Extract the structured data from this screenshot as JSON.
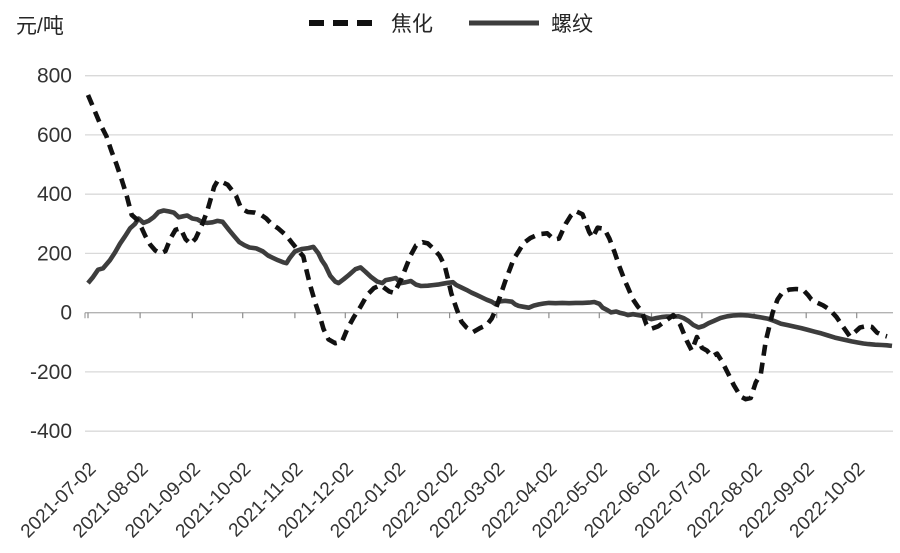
{
  "colors": {
    "background": "#ffffff",
    "gridline": "#d9d9d9",
    "axis_line": "#b3b3b3",
    "tick": "#8c8c8c",
    "label_text": "#333333",
    "jiaohua_line": "#111111",
    "luowen_line": "#3d3d3d"
  },
  "chart_data": {
    "type": "line",
    "unit_label": "元/吨",
    "title": "",
    "grid": true,
    "legend_position": "top-center",
    "ylim": [
      -400,
      800
    ],
    "yticks": [
      800,
      600,
      400,
      200,
      0,
      -200,
      -400
    ],
    "x_axis": {
      "start_date": "2021-07-02",
      "span_days": 478,
      "ticks": [
        {
          "label": "2021-07-02",
          "day": 0
        },
        {
          "label": "2021-08-02",
          "day": 31
        },
        {
          "label": "2021-09-02",
          "day": 62
        },
        {
          "label": "2021-10-02",
          "day": 92
        },
        {
          "label": "2021-11-02",
          "day": 123
        },
        {
          "label": "2021-12-02",
          "day": 153
        },
        {
          "label": "2022-01-02",
          "day": 184
        },
        {
          "label": "2022-02-02",
          "day": 215
        },
        {
          "label": "2022-03-02",
          "day": 243
        },
        {
          "label": "2022-04-02",
          "day": 274
        },
        {
          "label": "2022-05-02",
          "day": 304
        },
        {
          "label": "2022-06-02",
          "day": 335
        },
        {
          "label": "2022-07-02",
          "day": 365
        },
        {
          "label": "2022-08-02",
          "day": 396
        },
        {
          "label": "2022-09-02",
          "day": 427
        },
        {
          "label": "2022-10-02",
          "day": 457
        }
      ]
    },
    "series": [
      {
        "name": "焦化",
        "style": "dashed",
        "color": "#111111",
        "points": [
          [
            0,
            735
          ],
          [
            3,
            695
          ],
          [
            7,
            640
          ],
          [
            11,
            595
          ],
          [
            14,
            545
          ],
          [
            17,
            500
          ],
          [
            20,
            450
          ],
          [
            23,
            395
          ],
          [
            26,
            330
          ],
          [
            29,
            315
          ],
          [
            32,
            285
          ],
          [
            34,
            260
          ],
          [
            37,
            230
          ],
          [
            40,
            210
          ],
          [
            43,
            200
          ],
          [
            46,
            208
          ],
          [
            49,
            250
          ],
          [
            52,
            280
          ],
          [
            55,
            285
          ],
          [
            58,
            248
          ],
          [
            61,
            232
          ],
          [
            64,
            250
          ],
          [
            68,
            300
          ],
          [
            71,
            345
          ],
          [
            73,
            385
          ],
          [
            75,
            425
          ],
          [
            77,
            445
          ],
          [
            80,
            440
          ],
          [
            83,
            432
          ],
          [
            86,
            410
          ],
          [
            88,
            395
          ],
          [
            91,
            352
          ],
          [
            95,
            340
          ],
          [
            99,
            338
          ],
          [
            103,
            330
          ],
          [
            106,
            318
          ],
          [
            109,
            300
          ],
          [
            113,
            285
          ],
          [
            118,
            260
          ],
          [
            121,
            238
          ],
          [
            125,
            210
          ],
          [
            128,
            190
          ],
          [
            130,
            140
          ],
          [
            132,
            95
          ],
          [
            135,
            35
          ],
          [
            138,
            -15
          ],
          [
            140,
            -55
          ],
          [
            143,
            -90
          ],
          [
            147,
            -103
          ],
          [
            151,
            -98
          ],
          [
            154,
            -57
          ],
          [
            158,
            -15
          ],
          [
            162,
            20
          ],
          [
            166,
            60
          ],
          [
            170,
            83
          ],
          [
            174,
            93
          ],
          [
            179,
            72
          ],
          [
            182,
            67
          ],
          [
            186,
            110
          ],
          [
            189,
            153
          ],
          [
            192,
            195
          ],
          [
            195,
            227
          ],
          [
            199,
            238
          ],
          [
            202,
            234
          ],
          [
            205,
            218
          ],
          [
            209,
            193
          ],
          [
            212,
            160
          ],
          [
            214,
            115
          ],
          [
            216,
            65
          ],
          [
            219,
            15
          ],
          [
            222,
            -30
          ],
          [
            225,
            -50
          ],
          [
            229,
            -65
          ],
          [
            233,
            -52
          ],
          [
            237,
            -42
          ],
          [
            240,
            -20
          ],
          [
            242,
            5
          ],
          [
            245,
            55
          ],
          [
            248,
            105
          ],
          [
            251,
            150
          ],
          [
            253,
            180
          ],
          [
            256,
            207
          ],
          [
            259,
            235
          ],
          [
            263,
            252
          ],
          [
            268,
            265
          ],
          [
            273,
            268
          ],
          [
            277,
            247
          ],
          [
            280,
            250
          ],
          [
            284,
            300
          ],
          [
            287,
            327
          ],
          [
            290,
            343
          ],
          [
            294,
            332
          ],
          [
            298,
            272
          ],
          [
            300,
            253
          ],
          [
            303,
            287
          ],
          [
            307,
            283
          ],
          [
            310,
            250
          ],
          [
            313,
            205
          ],
          [
            316,
            155
          ],
          [
            319,
            110
          ],
          [
            321,
            85
          ],
          [
            324,
            45
          ],
          [
            327,
            20
          ],
          [
            329,
            8
          ],
          [
            332,
            -40
          ],
          [
            335,
            -54
          ],
          [
            339,
            -46
          ],
          [
            344,
            -25
          ],
          [
            348,
            -8
          ],
          [
            352,
            -40
          ],
          [
            356,
            -95
          ],
          [
            359,
            -128
          ],
          [
            362,
            -82
          ],
          [
            365,
            -118
          ],
          [
            368,
            -128
          ],
          [
            371,
            -148
          ],
          [
            374,
            -138
          ],
          [
            377,
            -165
          ],
          [
            381,
            -210
          ],
          [
            384,
            -245
          ],
          [
            388,
            -283
          ],
          [
            391,
            -292
          ],
          [
            394,
            -288
          ],
          [
            397,
            -235
          ],
          [
            400,
            -207
          ],
          [
            403,
            -95
          ],
          [
            405,
            -48
          ],
          [
            407,
            0
          ],
          [
            410,
            45
          ],
          [
            413,
            70
          ],
          [
            417,
            78
          ],
          [
            421,
            80
          ],
          [
            425,
            78
          ],
          [
            428,
            60
          ],
          [
            430,
            45
          ],
          [
            433,
            35
          ],
          [
            437,
            25
          ],
          [
            441,
            10
          ],
          [
            445,
            -15
          ],
          [
            449,
            -48
          ],
          [
            453,
            -80
          ],
          [
            456,
            -65
          ],
          [
            459,
            -50
          ],
          [
            463,
            -45
          ],
          [
            466,
            -48
          ],
          [
            469,
            -67
          ],
          [
            472,
            -75
          ],
          [
            475,
            -80
          ]
        ]
      },
      {
        "name": "螺纹",
        "style": "solid",
        "color": "#3d3d3d",
        "points": [
          [
            0,
            100
          ],
          [
            3,
            120
          ],
          [
            6,
            145
          ],
          [
            9,
            150
          ],
          [
            13,
            177
          ],
          [
            16,
            203
          ],
          [
            19,
            233
          ],
          [
            22,
            258
          ],
          [
            25,
            285
          ],
          [
            28,
            300
          ],
          [
            30,
            318
          ],
          [
            33,
            303
          ],
          [
            36,
            310
          ],
          [
            39,
            322
          ],
          [
            42,
            340
          ],
          [
            45,
            345
          ],
          [
            48,
            342
          ],
          [
            51,
            338
          ],
          [
            54,
            322
          ],
          [
            57,
            326
          ],
          [
            59,
            328
          ],
          [
            62,
            318
          ],
          [
            65,
            315
          ],
          [
            68,
            305
          ],
          [
            71,
            303
          ],
          [
            74,
            305
          ],
          [
            77,
            310
          ],
          [
            80,
            307
          ],
          [
            84,
            278
          ],
          [
            87,
            258
          ],
          [
            90,
            238
          ],
          [
            93,
            228
          ],
          [
            96,
            220
          ],
          [
            100,
            217
          ],
          [
            104,
            207
          ],
          [
            107,
            193
          ],
          [
            110,
            185
          ],
          [
            113,
            177
          ],
          [
            116,
            170
          ],
          [
            118,
            167
          ],
          [
            120,
            185
          ],
          [
            123,
            207
          ],
          [
            127,
            215
          ],
          [
            131,
            218
          ],
          [
            134,
            222
          ],
          [
            137,
            200
          ],
          [
            139,
            177
          ],
          [
            141,
            160
          ],
          [
            144,
            125
          ],
          [
            147,
            105
          ],
          [
            149,
            100
          ],
          [
            152,
            113
          ],
          [
            155,
            127
          ],
          [
            159,
            147
          ],
          [
            162,
            153
          ],
          [
            165,
            138
          ],
          [
            168,
            122
          ],
          [
            172,
            105
          ],
          [
            175,
            100
          ],
          [
            177,
            110
          ],
          [
            180,
            113
          ],
          [
            183,
            117
          ],
          [
            186,
            100
          ],
          [
            189,
            103
          ],
          [
            192,
            107
          ],
          [
            195,
            95
          ],
          [
            198,
            90
          ],
          [
            202,
            91
          ],
          [
            205,
            93
          ],
          [
            208,
            95
          ],
          [
            211,
            98
          ],
          [
            214,
            101
          ],
          [
            217,
            103
          ],
          [
            219,
            93
          ],
          [
            222,
            85
          ],
          [
            225,
            77
          ],
          [
            228,
            68
          ],
          [
            231,
            60
          ],
          [
            234,
            52
          ],
          [
            237,
            44
          ],
          [
            240,
            37
          ],
          [
            242,
            30
          ],
          [
            245,
            38
          ],
          [
            248,
            40
          ],
          [
            252,
            37
          ],
          [
            254,
            28
          ],
          [
            256,
            23
          ],
          [
            259,
            20
          ],
          [
            262,
            17
          ],
          [
            265,
            24
          ],
          [
            268,
            28
          ],
          [
            271,
            31
          ],
          [
            274,
            33
          ],
          [
            278,
            32
          ],
          [
            282,
            33
          ],
          [
            286,
            32
          ],
          [
            290,
            33
          ],
          [
            294,
            33
          ],
          [
            298,
            34
          ],
          [
            301,
            36
          ],
          [
            304,
            30
          ],
          [
            306,
            17
          ],
          [
            309,
            8
          ],
          [
            311,
            1
          ],
          [
            314,
            4
          ],
          [
            316,
            0
          ],
          [
            319,
            -4
          ],
          [
            321,
            -8
          ],
          [
            324,
            -5
          ],
          [
            327,
            -8
          ],
          [
            330,
            -11
          ],
          [
            333,
            -18
          ],
          [
            335,
            -22
          ],
          [
            338,
            -18
          ],
          [
            341,
            -15
          ],
          [
            344,
            -13
          ],
          [
            348,
            -13
          ],
          [
            351,
            -12
          ],
          [
            354,
            -18
          ],
          [
            357,
            -28
          ],
          [
            360,
            -42
          ],
          [
            363,
            -50
          ],
          [
            366,
            -45
          ],
          [
            369,
            -35
          ],
          [
            372,
            -28
          ],
          [
            376,
            -18
          ],
          [
            380,
            -12
          ],
          [
            384,
            -9
          ],
          [
            388,
            -8
          ],
          [
            392,
            -9
          ],
          [
            396,
            -12
          ],
          [
            400,
            -16
          ],
          [
            404,
            -20
          ],
          [
            408,
            -28
          ],
          [
            412,
            -37
          ],
          [
            416,
            -42
          ],
          [
            420,
            -47
          ],
          [
            424,
            -52
          ],
          [
            428,
            -58
          ],
          [
            432,
            -64
          ],
          [
            436,
            -70
          ],
          [
            440,
            -77
          ],
          [
            444,
            -84
          ],
          [
            448,
            -89
          ],
          [
            451,
            -93
          ],
          [
            454,
            -97
          ],
          [
            458,
            -101
          ],
          [
            461,
            -104
          ],
          [
            464,
            -106
          ],
          [
            468,
            -108
          ],
          [
            472,
            -109
          ],
          [
            475,
            -110
          ],
          [
            478,
            -112
          ]
        ]
      }
    ]
  }
}
